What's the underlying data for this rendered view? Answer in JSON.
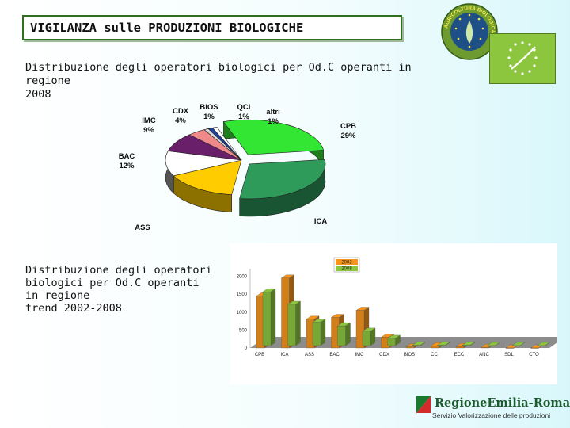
{
  "title": "VIGILANZA sulle PRODUZIONI BIOLOGICHE",
  "caption_pie": [
    "Distribuzione degli operatori biologici per Od.C operanti in regione",
    "2008"
  ],
  "caption_bar": [
    "Distribuzione degli operatori",
    "biologici per Od.C operanti",
    "in regione",
    "trend 2002-2008"
  ],
  "logo": {
    "seal_text": "AGRICOLTURA BIOLOGICA",
    "region_name": "RegioneEmilia-Romagna",
    "region_sub": "Servizio Valorizzazione delle produzioni",
    "colors": {
      "seal_green": "#6e9b2f",
      "seal_blue": "#1f4f87",
      "leaf_green": "#8cc63f"
    }
  },
  "chart_data": [
    {
      "type": "pie",
      "title": "",
      "slices": [
        {
          "label": "CPB",
          "value": 29,
          "value_label": "29%",
          "color": "#33e633"
        },
        {
          "label": "ICA",
          "value": 30,
          "value_label": "",
          "color": "#2e9b5a"
        },
        {
          "label": "ASS",
          "value": 16,
          "value_label": "",
          "color": "#ffcc00"
        },
        {
          "label": "BAC",
          "value": 12,
          "value_label": "12%",
          "color": "#ffffff"
        },
        {
          "label": "IMC",
          "value": 9,
          "value_label": "9%",
          "color": "#6a1f6a"
        },
        {
          "label": "CDX",
          "value": 4,
          "value_label": "4%",
          "color": "#f08a8a"
        },
        {
          "label": "BIOS",
          "value": 1,
          "value_label": "1%",
          "color": "#d9d9d9"
        },
        {
          "label": "QCI",
          "value": 1,
          "value_label": "1%",
          "color": "#1f3f9f"
        },
        {
          "label": "altri",
          "value": 1,
          "value_label": "1%",
          "color": "#ffffff"
        }
      ]
    },
    {
      "type": "bar",
      "categories": [
        "CPB",
        "ICA",
        "ASS",
        "BAC",
        "IMC",
        "CDX",
        "BIOS",
        "CC",
        "ECC",
        "ANC",
        "SDL",
        "CTO"
      ],
      "series": [
        {
          "name": "2002",
          "color": "#f7941d",
          "values": [
            1450,
            1950,
            800,
            850,
            1050,
            300,
            30,
            60,
            40,
            20,
            0,
            0
          ]
        },
        {
          "name": "2008",
          "color": "#8cc63f",
          "values": [
            1500,
            1150,
            650,
            550,
            400,
            200,
            10,
            10,
            10,
            0,
            0,
            0
          ]
        }
      ],
      "y_ticks": [
        "0",
        "500",
        "1000",
        "1500",
        "2000"
      ],
      "ylim": [
        0,
        2100
      ],
      "legend_position": "top"
    }
  ]
}
